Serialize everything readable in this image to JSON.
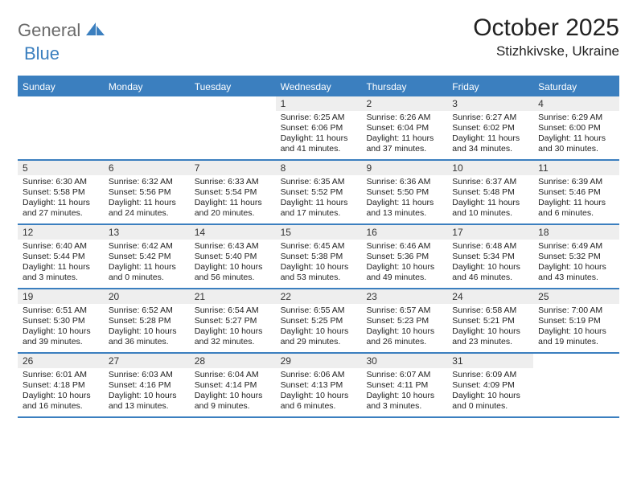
{
  "logo": {
    "text1": "General",
    "text2": "Blue",
    "shape_color": "#3b7fbf"
  },
  "header": {
    "month_title": "October 2025",
    "location": "Stizhkivske, Ukraine"
  },
  "colors": {
    "accent": "#3b7fbf",
    "header_bg": "#3b7fbf",
    "header_text": "#ffffff",
    "daynum_bg": "#eeeeee",
    "text": "#222222"
  },
  "weekdays": [
    "Sunday",
    "Monday",
    "Tuesday",
    "Wednesday",
    "Thursday",
    "Friday",
    "Saturday"
  ],
  "weeks": [
    [
      {
        "empty": true
      },
      {
        "empty": true
      },
      {
        "empty": true
      },
      {
        "day": "1",
        "sunrise": "Sunrise: 6:25 AM",
        "sunset": "Sunset: 6:06 PM",
        "day1": "Daylight: 11 hours",
        "day2": "and 41 minutes."
      },
      {
        "day": "2",
        "sunrise": "Sunrise: 6:26 AM",
        "sunset": "Sunset: 6:04 PM",
        "day1": "Daylight: 11 hours",
        "day2": "and 37 minutes."
      },
      {
        "day": "3",
        "sunrise": "Sunrise: 6:27 AM",
        "sunset": "Sunset: 6:02 PM",
        "day1": "Daylight: 11 hours",
        "day2": "and 34 minutes."
      },
      {
        "day": "4",
        "sunrise": "Sunrise: 6:29 AM",
        "sunset": "Sunset: 6:00 PM",
        "day1": "Daylight: 11 hours",
        "day2": "and 30 minutes."
      }
    ],
    [
      {
        "day": "5",
        "sunrise": "Sunrise: 6:30 AM",
        "sunset": "Sunset: 5:58 PM",
        "day1": "Daylight: 11 hours",
        "day2": "and 27 minutes."
      },
      {
        "day": "6",
        "sunrise": "Sunrise: 6:32 AM",
        "sunset": "Sunset: 5:56 PM",
        "day1": "Daylight: 11 hours",
        "day2": "and 24 minutes."
      },
      {
        "day": "7",
        "sunrise": "Sunrise: 6:33 AM",
        "sunset": "Sunset: 5:54 PM",
        "day1": "Daylight: 11 hours",
        "day2": "and 20 minutes."
      },
      {
        "day": "8",
        "sunrise": "Sunrise: 6:35 AM",
        "sunset": "Sunset: 5:52 PM",
        "day1": "Daylight: 11 hours",
        "day2": "and 17 minutes."
      },
      {
        "day": "9",
        "sunrise": "Sunrise: 6:36 AM",
        "sunset": "Sunset: 5:50 PM",
        "day1": "Daylight: 11 hours",
        "day2": "and 13 minutes."
      },
      {
        "day": "10",
        "sunrise": "Sunrise: 6:37 AM",
        "sunset": "Sunset: 5:48 PM",
        "day1": "Daylight: 11 hours",
        "day2": "and 10 minutes."
      },
      {
        "day": "11",
        "sunrise": "Sunrise: 6:39 AM",
        "sunset": "Sunset: 5:46 PM",
        "day1": "Daylight: 11 hours",
        "day2": "and 6 minutes."
      }
    ],
    [
      {
        "day": "12",
        "sunrise": "Sunrise: 6:40 AM",
        "sunset": "Sunset: 5:44 PM",
        "day1": "Daylight: 11 hours",
        "day2": "and 3 minutes."
      },
      {
        "day": "13",
        "sunrise": "Sunrise: 6:42 AM",
        "sunset": "Sunset: 5:42 PM",
        "day1": "Daylight: 11 hours",
        "day2": "and 0 minutes."
      },
      {
        "day": "14",
        "sunrise": "Sunrise: 6:43 AM",
        "sunset": "Sunset: 5:40 PM",
        "day1": "Daylight: 10 hours",
        "day2": "and 56 minutes."
      },
      {
        "day": "15",
        "sunrise": "Sunrise: 6:45 AM",
        "sunset": "Sunset: 5:38 PM",
        "day1": "Daylight: 10 hours",
        "day2": "and 53 minutes."
      },
      {
        "day": "16",
        "sunrise": "Sunrise: 6:46 AM",
        "sunset": "Sunset: 5:36 PM",
        "day1": "Daylight: 10 hours",
        "day2": "and 49 minutes."
      },
      {
        "day": "17",
        "sunrise": "Sunrise: 6:48 AM",
        "sunset": "Sunset: 5:34 PM",
        "day1": "Daylight: 10 hours",
        "day2": "and 46 minutes."
      },
      {
        "day": "18",
        "sunrise": "Sunrise: 6:49 AM",
        "sunset": "Sunset: 5:32 PM",
        "day1": "Daylight: 10 hours",
        "day2": "and 43 minutes."
      }
    ],
    [
      {
        "day": "19",
        "sunrise": "Sunrise: 6:51 AM",
        "sunset": "Sunset: 5:30 PM",
        "day1": "Daylight: 10 hours",
        "day2": "and 39 minutes."
      },
      {
        "day": "20",
        "sunrise": "Sunrise: 6:52 AM",
        "sunset": "Sunset: 5:28 PM",
        "day1": "Daylight: 10 hours",
        "day2": "and 36 minutes."
      },
      {
        "day": "21",
        "sunrise": "Sunrise: 6:54 AM",
        "sunset": "Sunset: 5:27 PM",
        "day1": "Daylight: 10 hours",
        "day2": "and 32 minutes."
      },
      {
        "day": "22",
        "sunrise": "Sunrise: 6:55 AM",
        "sunset": "Sunset: 5:25 PM",
        "day1": "Daylight: 10 hours",
        "day2": "and 29 minutes."
      },
      {
        "day": "23",
        "sunrise": "Sunrise: 6:57 AM",
        "sunset": "Sunset: 5:23 PM",
        "day1": "Daylight: 10 hours",
        "day2": "and 26 minutes."
      },
      {
        "day": "24",
        "sunrise": "Sunrise: 6:58 AM",
        "sunset": "Sunset: 5:21 PM",
        "day1": "Daylight: 10 hours",
        "day2": "and 23 minutes."
      },
      {
        "day": "25",
        "sunrise": "Sunrise: 7:00 AM",
        "sunset": "Sunset: 5:19 PM",
        "day1": "Daylight: 10 hours",
        "day2": "and 19 minutes."
      }
    ],
    [
      {
        "day": "26",
        "sunrise": "Sunrise: 6:01 AM",
        "sunset": "Sunset: 4:18 PM",
        "day1": "Daylight: 10 hours",
        "day2": "and 16 minutes."
      },
      {
        "day": "27",
        "sunrise": "Sunrise: 6:03 AM",
        "sunset": "Sunset: 4:16 PM",
        "day1": "Daylight: 10 hours",
        "day2": "and 13 minutes."
      },
      {
        "day": "28",
        "sunrise": "Sunrise: 6:04 AM",
        "sunset": "Sunset: 4:14 PM",
        "day1": "Daylight: 10 hours",
        "day2": "and 9 minutes."
      },
      {
        "day": "29",
        "sunrise": "Sunrise: 6:06 AM",
        "sunset": "Sunset: 4:13 PM",
        "day1": "Daylight: 10 hours",
        "day2": "and 6 minutes."
      },
      {
        "day": "30",
        "sunrise": "Sunrise: 6:07 AM",
        "sunset": "Sunset: 4:11 PM",
        "day1": "Daylight: 10 hours",
        "day2": "and 3 minutes."
      },
      {
        "day": "31",
        "sunrise": "Sunrise: 6:09 AM",
        "sunset": "Sunset: 4:09 PM",
        "day1": "Daylight: 10 hours",
        "day2": "and 0 minutes."
      },
      {
        "empty": true
      }
    ]
  ]
}
